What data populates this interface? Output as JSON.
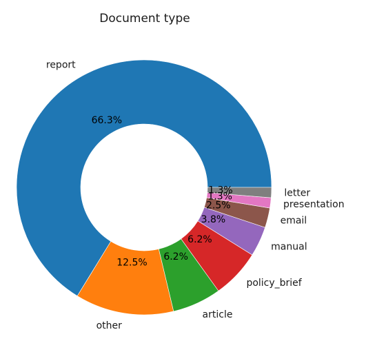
{
  "chart_data": {
    "type": "pie",
    "title": "Document type",
    "donut": true,
    "start_angle_deg": 0,
    "direction": "counterclockwise",
    "slices": [
      {
        "label": "report",
        "value": 66.3,
        "pct_text": "66.3%",
        "color": "#1f77b4"
      },
      {
        "label": "other",
        "value": 12.5,
        "pct_text": "12.5%",
        "color": "#ff7f0e"
      },
      {
        "label": "article",
        "value": 6.2,
        "pct_text": "6.2%",
        "color": "#2ca02c"
      },
      {
        "label": "policy_brief",
        "value": 6.2,
        "pct_text": "6.2%",
        "color": "#d62728"
      },
      {
        "label": "manual",
        "value": 3.8,
        "pct_text": "3.8%",
        "color": "#9467bd"
      },
      {
        "label": "email",
        "value": 2.5,
        "pct_text": "2.5%",
        "color": "#8c564b"
      },
      {
        "label": "presentation",
        "value": 1.3,
        "pct_text": "1.3%",
        "color": "#e377c2"
      },
      {
        "label": "letter",
        "value": 1.3,
        "pct_text": "1.3%",
        "color": "#7f7f7f"
      }
    ]
  }
}
